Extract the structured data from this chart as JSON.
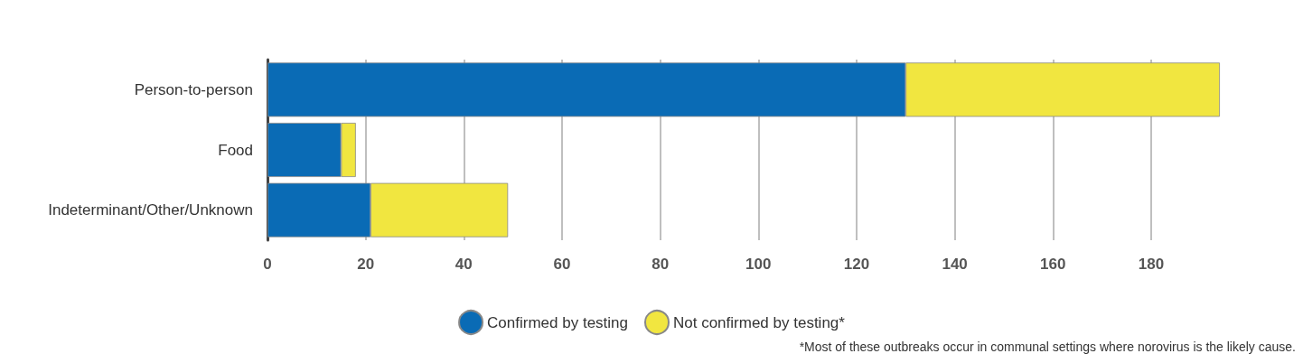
{
  "chart_data": {
    "type": "bar",
    "orientation": "horizontal",
    "stacked": true,
    "categories": [
      "Person-to-person",
      "Food",
      "Indeterminant/Other/Unknown"
    ],
    "series": [
      {
        "name": "Confirmed by testing",
        "color": "#0a6bb5",
        "values": [
          130,
          15,
          21
        ]
      },
      {
        "name": "Not confirmed by testing*",
        "color": "#f1e640",
        "values": [
          64,
          3,
          28
        ]
      }
    ],
    "xlim": [
      0,
      194
    ],
    "xticks": [
      0,
      20,
      40,
      60,
      80,
      100,
      120,
      140,
      160,
      180
    ],
    "grid": "x",
    "legend": "bottom",
    "annotations": [
      "*Most of these outbreaks occur in communal settings where norovirus is the likely cause."
    ]
  }
}
